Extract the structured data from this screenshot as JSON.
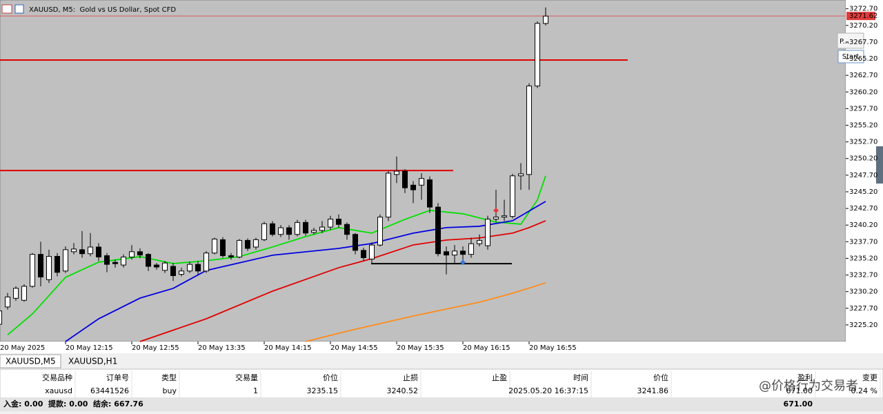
{
  "chart_data": {
    "type": "candlestick",
    "title": "XAUUSD, M5:  Gold vs US Dollar, Spot CFD",
    "categories": [
      "20 May 2025",
      null,
      null,
      null,
      null,
      null,
      null,
      null,
      "20 May 12:15",
      null,
      null,
      null,
      null,
      null,
      null,
      null,
      "20 May 12:55",
      null,
      null,
      null,
      null,
      null,
      null,
      null,
      "20 May 13:35",
      null,
      null,
      null,
      null,
      null,
      null,
      null,
      "20 May 14:15",
      null,
      null,
      null,
      null,
      null,
      null,
      null,
      "20 May 14:55",
      null,
      null,
      null,
      null,
      null,
      null,
      null,
      "20 May 15:35",
      null,
      null,
      null,
      null,
      null,
      null,
      null,
      "20 May 16:15",
      null,
      null,
      null,
      null,
      null,
      null,
      null,
      "20 May 16:55",
      null,
      null
    ],
    "open": [
      3225.3,
      3227.9,
      3229.2,
      3228.9,
      3231.0,
      3235.8,
      3232.0,
      3235.5,
      3233.3,
      3236.2,
      3236.5,
      3235.9,
      3236.9,
      3235.6,
      3234.6,
      3234.2,
      3235.4,
      3236.2,
      3235.8,
      3234.2,
      3233.4,
      3234.0,
      3232.8,
      3233.3,
      3234.3,
      3233.3,
      3236.0,
      3238.0,
      3235.6,
      3235.4,
      3237.9,
      3236.9,
      3238.0,
      3240.4,
      3238.8,
      3239.8,
      3238.8,
      3240.6,
      3239.1,
      3239.4,
      3239.9,
      3241.1,
      3240.3,
      3238.8,
      3236.4,
      3235.1,
      3237.2,
      3241.4,
      3247.8,
      3248.3,
      3246.2,
      3246.2,
      3247.0,
      3242.9,
      3236.2,
      3235.7,
      3236.3,
      3235.8,
      3237.4,
      3237.1,
      3241.1,
      3241.4,
      3241.5,
      3247.6,
      3247.8,
      3261.1,
      3270.5
    ],
    "high": [
      3227.6,
      3230.0,
      3231.0,
      3231.3,
      3236.0,
      3237.7,
      3236.5,
      3236.0,
      3237.0,
      3237.5,
      3239.3,
      3239.0,
      3237.5,
      3236.0,
      3235.0,
      3235.8,
      3237.2,
      3236.7,
      3236.0,
      3234.5,
      3234.8,
      3234.5,
      3233.8,
      3234.7,
      3234.8,
      3236.3,
      3238.3,
      3238.4,
      3236.0,
      3238.1,
      3238.2,
      3238.3,
      3240.7,
      3240.8,
      3240.2,
      3240.2,
      3241.0,
      3241.0,
      3239.8,
      3240.8,
      3241.6,
      3241.8,
      3240.6,
      3239.0,
      3236.8,
      3237.6,
      3241.8,
      3248.3,
      3250.5,
      3248.6,
      3246.8,
      3248.0,
      3247.5,
      3243.5,
      3237.0,
      3237.2,
      3237.0,
      3238.3,
      3238.8,
      3241.6,
      3245.5,
      3244.0,
      3247.9,
      3249.5,
      3261.5,
      3270.8,
      3272.9
    ],
    "low": [
      3225.0,
      3227.5,
      3228.8,
      3228.7,
      3230.8,
      3231.0,
      3231.5,
      3232.5,
      3233.0,
      3235.8,
      3235.3,
      3235.5,
      3234.8,
      3233.1,
      3233.8,
      3233.8,
      3235.0,
      3235.2,
      3233.3,
      3233.5,
      3233.0,
      3231.8,
      3232.5,
      3233.0,
      3232.8,
      3233.0,
      3235.8,
      3235.3,
      3235.0,
      3235.2,
      3236.3,
      3236.5,
      3237.8,
      3238.5,
      3238.4,
      3238.0,
      3238.5,
      3238.6,
      3238.8,
      3239.0,
      3239.5,
      3239.8,
      3238.0,
      3235.8,
      3234.8,
      3234.5,
      3237.0,
      3240.8,
      3246.5,
      3245.0,
      3243.5,
      3244.0,
      3242.0,
      3235.5,
      3232.8,
      3234.5,
      3234.5,
      3235.3,
      3237.0,
      3236.5,
      3240.7,
      3240.8,
      3241.2,
      3245.5,
      3245.5,
      3260.8,
      3270.2
    ],
    "close": [
      3227.3,
      3229.4,
      3230.7,
      3231.0,
      3235.8,
      3232.4,
      3235.5,
      3233.1,
      3236.5,
      3236.6,
      3235.9,
      3236.9,
      3235.4,
      3234.3,
      3234.4,
      3235.4,
      3236.2,
      3235.7,
      3234.0,
      3233.9,
      3234.5,
      3232.6,
      3233.3,
      3234.3,
      3233.3,
      3236.0,
      3238.1,
      3235.6,
      3235.4,
      3237.9,
      3236.7,
      3238.0,
      3240.4,
      3238.8,
      3239.8,
      3238.8,
      3240.6,
      3239.0,
      3239.4,
      3239.9,
      3241.1,
      3240.3,
      3238.8,
      3236.4,
      3235.3,
      3237.2,
      3241.4,
      3248.0,
      3248.3,
      3245.8,
      3245.5,
      3247.2,
      3242.9,
      3235.9,
      3235.7,
      3236.3,
      3235.8,
      3237.4,
      3237.9,
      3241.1,
      3241.4,
      3241.6,
      3247.6,
      3247.9,
      3261.1,
      3270.5,
      3271.6
    ],
    "up_color": "#ffffff",
    "down_color": "#000000",
    "background": "#c0c0c0",
    "ylim": [
      3222.7,
      3273.5
    ],
    "yticks": [
      {
        "value": 3225.2,
        "label": "3225.20"
      },
      {
        "value": 3227.7,
        "label": "3227.70"
      },
      {
        "value": 3230.2,
        "label": "3230.20"
      },
      {
        "value": 3232.7,
        "label": "3232.70"
      },
      {
        "value": 3235.2,
        "label": "3235.20"
      },
      {
        "value": 3237.7,
        "label": "3237.70"
      },
      {
        "value": 3240.2,
        "label": "3240.20"
      },
      {
        "value": 3242.7,
        "label": "3242.70"
      },
      {
        "value": 3245.2,
        "label": "3245.20"
      },
      {
        "value": 3247.7,
        "label": "3247.70"
      },
      {
        "value": 3250.2,
        "label": "3250.20"
      },
      {
        "value": 3252.7,
        "label": "3252.70"
      },
      {
        "value": 3255.2,
        "label": "3255.20"
      },
      {
        "value": 3257.7,
        "label": "3257.70"
      },
      {
        "value": 3260.2,
        "label": "3260.20"
      },
      {
        "value": 3262.7,
        "label": "3262.70"
      },
      {
        "value": 3265.2,
        "label": "3265.20"
      },
      {
        "value": 3267.7,
        "label": "3267.70"
      },
      {
        "value": 3270.2,
        "label": "3270.20"
      },
      {
        "value": 3272.7,
        "label": "3272.70"
      }
    ],
    "series": [
      {
        "color": "#00e000",
        "x": [
          1,
          4,
          8,
          12,
          17,
          21,
          25,
          29,
          33,
          37,
          41,
          45,
          49,
          52,
          56,
          60,
          63,
          65,
          66
        ],
        "values": [
          3223.7,
          3226.85,
          3232.35,
          3234.63,
          3235.46,
          3234.42,
          3234.84,
          3235.46,
          3236.91,
          3238.47,
          3239.82,
          3238.99,
          3241.06,
          3242.41,
          3241.9,
          3240.65,
          3240.33,
          3243.97,
          3247.6
        ]
      },
      {
        "color": "#0000e0",
        "x": [
          8,
          12,
          17,
          21,
          25,
          33,
          41,
          45,
          50,
          54,
          58,
          62,
          66
        ],
        "values": [
          3222.7,
          3226.12,
          3229.23,
          3230.69,
          3233.38,
          3235.67,
          3236.7,
          3237.43,
          3238.99,
          3239.82,
          3240.02,
          3240.85,
          3243.76
        ]
      },
      {
        "color": "#e00000",
        "x": [
          17,
          25,
          33,
          41,
          45,
          50,
          54,
          58,
          62,
          64,
          66
        ],
        "values": [
          3222.7,
          3226.12,
          3230.27,
          3233.8,
          3235.15,
          3237.22,
          3237.95,
          3238.26,
          3238.99,
          3239.82,
          3240.85
        ]
      },
      {
        "color": "#ff8c1a",
        "x": [
          37,
          42,
          50,
          54,
          58,
          62,
          66
        ],
        "values": [
          3222.7,
          3224.26,
          3226.54,
          3227.58,
          3228.61,
          3229.96,
          3231.52
        ]
      }
    ],
    "levels": [
      {
        "value": 3265.0,
        "color": "#e00000"
      },
      {
        "value": 3248.4,
        "color": "#e00000"
      },
      {
        "value": 3234.4,
        "color": "#000000"
      }
    ],
    "price_line": {
      "value": 3271.62,
      "label": "3271.62",
      "color": "#e03c3c"
    },
    "markers": [
      {
        "x": 60,
        "value": 3242.4,
        "color": "#e03c3c"
      },
      {
        "x": 56,
        "value": 3234.6,
        "color": "#3c78d8"
      }
    ]
  },
  "buttons": [
    "P...",
    "Start"
  ],
  "tabs": [
    "XAUUSD,M5",
    "XAUUSD,H1"
  ],
  "table": {
    "headers": [
      "交易品种",
      "订单号",
      "类型",
      "交易量",
      "价位",
      "止损",
      "止盈",
      "时间",
      "价位",
      "盈利",
      "变更"
    ],
    "rows": [
      [
        "xauusd",
        "63441526",
        "buy",
        "1",
        "3235.15",
        "3240.52",
        null,
        "2025.05.20 16:37:15",
        "3241.86",
        "671.00",
        "0.24 %"
      ]
    ]
  },
  "footer": {
    "summary": "入金: 0.00  提款: 0.00  结余: 667.76",
    "total": "671.00"
  },
  "watermark": "@价格行为交易者"
}
